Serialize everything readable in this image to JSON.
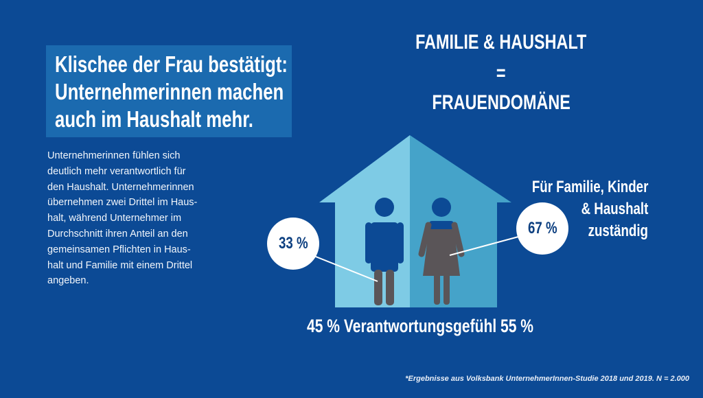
{
  "title_box": {
    "lines": [
      "Klischee der Frau bestätigt:",
      "Unternehmerinnen machen",
      "auch im Haushalt mehr."
    ]
  },
  "body_text": {
    "lines": [
      "Unternehmerinnen fühlen sich",
      "deutlich mehr verantwortlich für",
      "den Haushalt. Unternehmerinnen",
      "übernehmen zwei Drittel im Haus-",
      "halt, während Unternehmer im",
      "Durchschnitt ihren Anteil an den",
      "gemeinsamen Pflichten in Haus-",
      "halt und Familie mit einem Drittel",
      "angeben."
    ]
  },
  "heading": {
    "line1": "FAMILIE & HAUSHALT",
    "equals": "=",
    "line2": "FRAUENDOMÄNE"
  },
  "figures": {
    "men_share": "33 %",
    "women_share": "67 %",
    "men_value": 33,
    "women_value": 67
  },
  "side_label": {
    "lines": [
      "Für Familie, Kinder",
      "& Haushalt",
      "zuständig"
    ]
  },
  "responsibility": {
    "text": "45 % Verantwortungsgefühl 55 %",
    "men_value": 45,
    "women_value": 55
  },
  "footnote": "*Ergebnisse aus Volksbank UnternehmerInnen-Studie 2018 und 2019. N = 2.000",
  "colors": {
    "background": "#0c4a95",
    "title_box": "#1b6aaf",
    "house_left": "#7ecbe5",
    "house_right": "#45a3c9",
    "figure_blue": "#0c4a95",
    "figure_gray": "#5a5558"
  }
}
